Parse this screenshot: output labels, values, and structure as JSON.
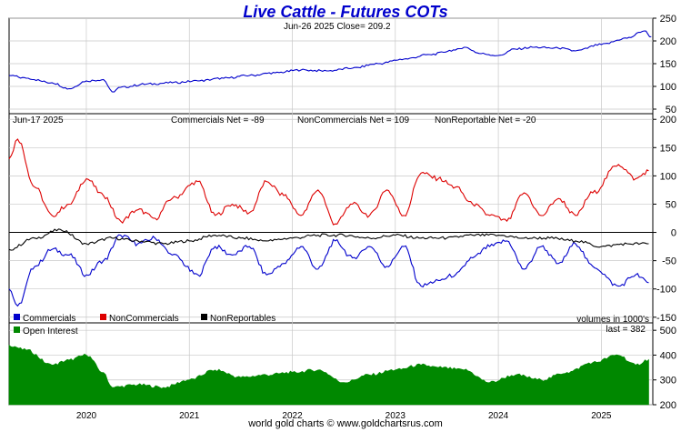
{
  "title": "Live Cattle - Futures COTs",
  "footer": "world gold charts © www.goldchartsrus.com",
  "colors": {
    "price": "#0000cc",
    "commercials": "#0000cc",
    "noncommercials": "#dd0000",
    "nonreportables": "#000000",
    "open_interest": "#008800"
  },
  "chart_data": [
    {
      "type": "line",
      "panel": "price",
      "header": "Jun-26  2025   Close= 209.2",
      "ylim": [
        40,
        250
      ],
      "yticks": [
        50,
        100,
        150,
        200,
        250
      ],
      "x_range": [
        "2019-04",
        "2025-07"
      ],
      "series": [
        {
          "key": "price",
          "points": [
            [
              "2019-04",
              124
            ],
            [
              "2019-06",
              118
            ],
            [
              "2019-09",
              108
            ],
            [
              "2019-11",
              95
            ],
            [
              "2020-01",
              112
            ],
            [
              "2020-03",
              115
            ],
            [
              "2020-04",
              88
            ],
            [
              "2020-05",
              98
            ],
            [
              "2020-08",
              105
            ],
            [
              "2020-11",
              108
            ],
            [
              "2021-02",
              112
            ],
            [
              "2021-05",
              118
            ],
            [
              "2021-08",
              124
            ],
            [
              "2021-11",
              130
            ],
            [
              "2022-02",
              136
            ],
            [
              "2022-05",
              134
            ],
            [
              "2022-08",
              140
            ],
            [
              "2022-11",
              150
            ],
            [
              "2023-02",
              160
            ],
            [
              "2023-05",
              170
            ],
            [
              "2023-08",
              180
            ],
            [
              "2023-09",
              186
            ],
            [
              "2023-11",
              172
            ],
            [
              "2024-01",
              168
            ],
            [
              "2024-03",
              182
            ],
            [
              "2024-05",
              186
            ],
            [
              "2024-08",
              184
            ],
            [
              "2024-10",
              178
            ],
            [
              "2025-01",
              192
            ],
            [
              "2025-04",
              206
            ],
            [
              "2025-06",
              222
            ],
            [
              "2025-06-26",
              209.2
            ]
          ]
        }
      ]
    },
    {
      "type": "line",
      "panel": "cot_net",
      "header_date": "Jun-17  2025",
      "stats": [
        "Commercials Net = -89",
        "NonCommercials Net = 109",
        "NonReportable Net = -20"
      ],
      "ylim": [
        -160,
        210
      ],
      "yticks": [
        -150,
        -100,
        -50,
        0,
        50,
        100,
        150,
        200
      ],
      "legend": [
        "Commercials",
        "NonCommercials",
        "NonReportables"
      ],
      "note": "volumes in 1000's",
      "x_range": [
        "2019-04",
        "2025-07"
      ],
      "series": [
        {
          "key": "noncommercials",
          "name": "NonCommercials",
          "points": [
            [
              "2019-04",
              130
            ],
            [
              "2019-05",
              165
            ],
            [
              "2019-07",
              80
            ],
            [
              "2019-09",
              30
            ],
            [
              "2019-11",
              50
            ],
            [
              "2020-01",
              95
            ],
            [
              "2020-03",
              65
            ],
            [
              "2020-05",
              20
            ],
            [
              "2020-07",
              40
            ],
            [
              "2020-09",
              25
            ],
            [
              "2020-11",
              60
            ],
            [
              "2021-02",
              90
            ],
            [
              "2021-04",
              30
            ],
            [
              "2021-06",
              50
            ],
            [
              "2021-08",
              35
            ],
            [
              "2021-10",
              90
            ],
            [
              "2021-12",
              65
            ],
            [
              "2022-02",
              30
            ],
            [
              "2022-04",
              75
            ],
            [
              "2022-06",
              15
            ],
            [
              "2022-08",
              50
            ],
            [
              "2022-10",
              30
            ],
            [
              "2022-12",
              75
            ],
            [
              "2023-02",
              30
            ],
            [
              "2023-04",
              105
            ],
            [
              "2023-06",
              95
            ],
            [
              "2023-08",
              80
            ],
            [
              "2023-10",
              50
            ],
            [
              "2023-12",
              30
            ],
            [
              "2024-02",
              20
            ],
            [
              "2024-04",
              70
            ],
            [
              "2024-06",
              30
            ],
            [
              "2024-08",
              60
            ],
            [
              "2024-10",
              30
            ],
            [
              "2024-12",
              70
            ],
            [
              "2025-03",
              120
            ],
            [
              "2025-05",
              95
            ],
            [
              "2025-06-17",
              109
            ]
          ]
        },
        {
          "key": "commercials",
          "name": "Commercials",
          "points": [
            [
              "2019-04",
              -100
            ],
            [
              "2019-05",
              -130
            ],
            [
              "2019-07",
              -60
            ],
            [
              "2019-09",
              -30
            ],
            [
              "2019-11",
              -40
            ],
            [
              "2020-01",
              -75
            ],
            [
              "2020-03",
              -50
            ],
            [
              "2020-05",
              -5
            ],
            [
              "2020-07",
              -20
            ],
            [
              "2020-09",
              -10
            ],
            [
              "2020-11",
              -40
            ],
            [
              "2021-02",
              -75
            ],
            [
              "2021-04",
              -25
            ],
            [
              "2021-06",
              -40
            ],
            [
              "2021-08",
              -25
            ],
            [
              "2021-10",
              -75
            ],
            [
              "2021-12",
              -55
            ],
            [
              "2022-02",
              -25
            ],
            [
              "2022-04",
              -65
            ],
            [
              "2022-06",
              -15
            ],
            [
              "2022-08",
              -45
            ],
            [
              "2022-10",
              -25
            ],
            [
              "2022-12",
              -60
            ],
            [
              "2023-02",
              -25
            ],
            [
              "2023-04",
              -95
            ],
            [
              "2023-06",
              -85
            ],
            [
              "2023-08",
              -75
            ],
            [
              "2023-10",
              -45
            ],
            [
              "2023-12",
              -25
            ],
            [
              "2024-02",
              -15
            ],
            [
              "2024-04",
              -65
            ],
            [
              "2024-06",
              -25
            ],
            [
              "2024-08",
              -55
            ],
            [
              "2024-10",
              -20
            ],
            [
              "2024-12",
              -60
            ],
            [
              "2025-03",
              -95
            ],
            [
              "2025-05",
              -75
            ],
            [
              "2025-06-17",
              -89
            ]
          ]
        },
        {
          "key": "nonreportables",
          "name": "NonReportables",
          "points": [
            [
              "2019-04",
              -30
            ],
            [
              "2019-07",
              -10
            ],
            [
              "2019-10",
              5
            ],
            [
              "2020-01",
              -20
            ],
            [
              "2020-04",
              -10
            ],
            [
              "2020-07",
              -15
            ],
            [
              "2020-10",
              -20
            ],
            [
              "2021-01",
              -15
            ],
            [
              "2021-04",
              -5
            ],
            [
              "2021-07",
              -10
            ],
            [
              "2021-10",
              -15
            ],
            [
              "2022-01",
              -10
            ],
            [
              "2022-04",
              -5
            ],
            [
              "2022-07",
              -5
            ],
            [
              "2022-10",
              -10
            ],
            [
              "2023-01",
              -5
            ],
            [
              "2023-04",
              -10
            ],
            [
              "2023-07",
              -10
            ],
            [
              "2023-10",
              -5
            ],
            [
              "2024-01",
              -5
            ],
            [
              "2024-04",
              -10
            ],
            [
              "2024-07",
              -10
            ],
            [
              "2024-10",
              -15
            ],
            [
              "2025-01",
              -25
            ],
            [
              "2025-04",
              -20
            ],
            [
              "2025-06-17",
              -20
            ]
          ]
        }
      ]
    },
    {
      "type": "area",
      "panel": "open_interest",
      "legend": [
        "Open Interest"
      ],
      "last_label": "last = 382",
      "ylim": [
        200,
        530
      ],
      "yticks": [
        200,
        300,
        400,
        500
      ],
      "x_range": [
        "2019-04",
        "2025-07"
      ],
      "x_ticks": [
        "2020",
        "2021",
        "2022",
        "2023",
        "2024",
        "2025"
      ],
      "series": [
        {
          "key": "open_interest",
          "name": "Open Interest",
          "points": [
            [
              "2019-04",
              440
            ],
            [
              "2019-06",
              420
            ],
            [
              "2019-09",
              360
            ],
            [
              "2019-11",
              380
            ],
            [
              "2020-01",
              400
            ],
            [
              "2020-03",
              330
            ],
            [
              "2020-04",
              270
            ],
            [
              "2020-07",
              280
            ],
            [
              "2020-10",
              270
            ],
            [
              "2021-01",
              300
            ],
            [
              "2021-04",
              340
            ],
            [
              "2021-07",
              310
            ],
            [
              "2021-10",
              320
            ],
            [
              "2022-01",
              330
            ],
            [
              "2022-04",
              340
            ],
            [
              "2022-07",
              290
            ],
            [
              "2022-10",
              320
            ],
            [
              "2023-01",
              340
            ],
            [
              "2023-04",
              360
            ],
            [
              "2023-06",
              350
            ],
            [
              "2023-09",
              340
            ],
            [
              "2023-12",
              290
            ],
            [
              "2024-03",
              320
            ],
            [
              "2024-06",
              300
            ],
            [
              "2024-09",
              330
            ],
            [
              "2024-12",
              370
            ],
            [
              "2025-03",
              400
            ],
            [
              "2025-05",
              360
            ],
            [
              "2025-06-17",
              382
            ]
          ]
        }
      ]
    }
  ]
}
